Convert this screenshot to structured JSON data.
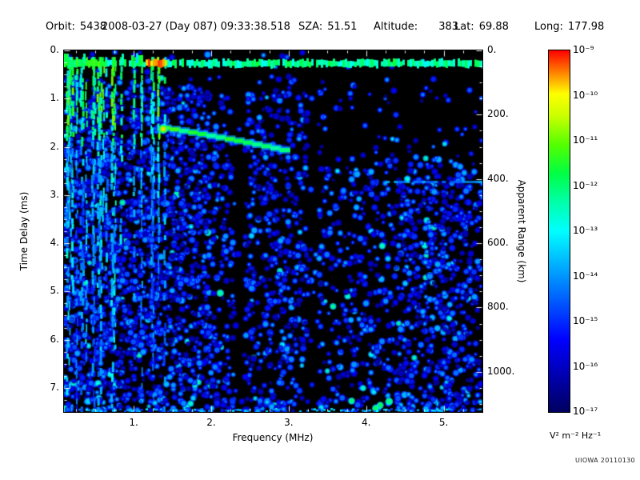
{
  "header": {
    "fields": [
      {
        "id": "orbit",
        "label": "Orbit:",
        "value": "5438"
      },
      {
        "id": "datetime",
        "label": "",
        "value": "2008-03-27 (Day 087) 09:33:38.518"
      },
      {
        "id": "sza",
        "label": "SZA:",
        "value": "51.51"
      },
      {
        "id": "altitude",
        "label": "Altitude:",
        "value": "383"
      },
      {
        "id": "lat",
        "label": "Lat:",
        "value": "69.88"
      },
      {
        "id": "long",
        "label": "Long:",
        "value": "177.98"
      }
    ]
  },
  "chart_data": {
    "type": "heatmap",
    "title": "",
    "xlabel": "Frequency (MHz)",
    "ylabel": "Time Delay (ms)",
    "y2label": "Apparent Range (km)",
    "x_range": [
      0.1,
      5.5
    ],
    "y_range": [
      0,
      7.5
    ],
    "y2_range": [
      0,
      1125
    ],
    "grid": false,
    "background": "#000000",
    "x_ticks": [
      {
        "v": 1,
        "label": "1."
      },
      {
        "v": 2,
        "label": "2."
      },
      {
        "v": 3,
        "label": "3."
      },
      {
        "v": 4,
        "label": "4."
      },
      {
        "v": 5,
        "label": "5."
      }
    ],
    "y_ticks": [
      {
        "v": 0,
        "label": "0."
      },
      {
        "v": 1,
        "label": "1."
      },
      {
        "v": 2,
        "label": "2."
      },
      {
        "v": 3,
        "label": "3."
      },
      {
        "v": 4,
        "label": "4."
      },
      {
        "v": 5,
        "label": "5."
      },
      {
        "v": 6,
        "label": "6."
      },
      {
        "v": 7,
        "label": "7."
      }
    ],
    "y2_ticks": [
      {
        "v": 0,
        "label": "0."
      },
      {
        "v": 200,
        "label": "200."
      },
      {
        "v": 400,
        "label": "400."
      },
      {
        "v": 600,
        "label": "600."
      },
      {
        "v": 800,
        "label": "800."
      },
      {
        "v": 1000,
        "label": "1000."
      }
    ],
    "colorbar": {
      "ticks": [
        "10⁻⁹",
        "10⁻¹⁰",
        "10⁻¹¹",
        "10⁻¹²",
        "10⁻¹³",
        "10⁻¹⁴",
        "10⁻¹⁵",
        "10⁻¹⁶",
        "10⁻¹⁷"
      ],
      "unit": "V² m⁻² Hz⁻¹",
      "scale_min_exp": -17,
      "scale_max_exp": -9,
      "stops": [
        {
          "pos": 0.0,
          "color": "#000060"
        },
        {
          "pos": 0.1,
          "color": "#0000b0"
        },
        {
          "pos": 0.2,
          "color": "#0000ff"
        },
        {
          "pos": 0.3,
          "color": "#0055ff"
        },
        {
          "pos": 0.4,
          "color": "#00aaff"
        },
        {
          "pos": 0.5,
          "color": "#00ffff"
        },
        {
          "pos": 0.58,
          "color": "#00ffaa"
        },
        {
          "pos": 0.66,
          "color": "#00ff44"
        },
        {
          "pos": 0.74,
          "color": "#55ff00"
        },
        {
          "pos": 0.82,
          "color": "#ccff00"
        },
        {
          "pos": 0.88,
          "color": "#ffff00"
        },
        {
          "pos": 0.94,
          "color": "#ff7f00"
        },
        {
          "pos": 1.0,
          "color": "#ff0000"
        }
      ]
    },
    "features": {
      "noise_seed": 5438,
      "direct_signal_band": {
        "delay_ms": 0.27,
        "thickness_ms": 0.16,
        "freq_range_mhz": [
          0.1,
          5.5
        ],
        "hot_freq_mhz": [
          1.15,
          1.42
        ],
        "bright_patch_freq_mhz": [
          0.82,
          1.12
        ]
      },
      "echo_trace": {
        "start_freq_mhz": 1.35,
        "start_delay_ms": 1.6,
        "end_freq_mhz": 3.0,
        "end_delay_ms": 2.1,
        "bright_spot_freq_mhz": 1.38
      },
      "plasma_stripes_freq_mhz": [
        0.1,
        1.45
      ],
      "faint_echo": {
        "delay_ms": 2.72,
        "freq_range_mhz": [
          4.15,
          5.5
        ]
      },
      "dark_bands_mhz": [
        2.37,
        3.32
      ]
    }
  },
  "credit": "UIOWA 20110130"
}
